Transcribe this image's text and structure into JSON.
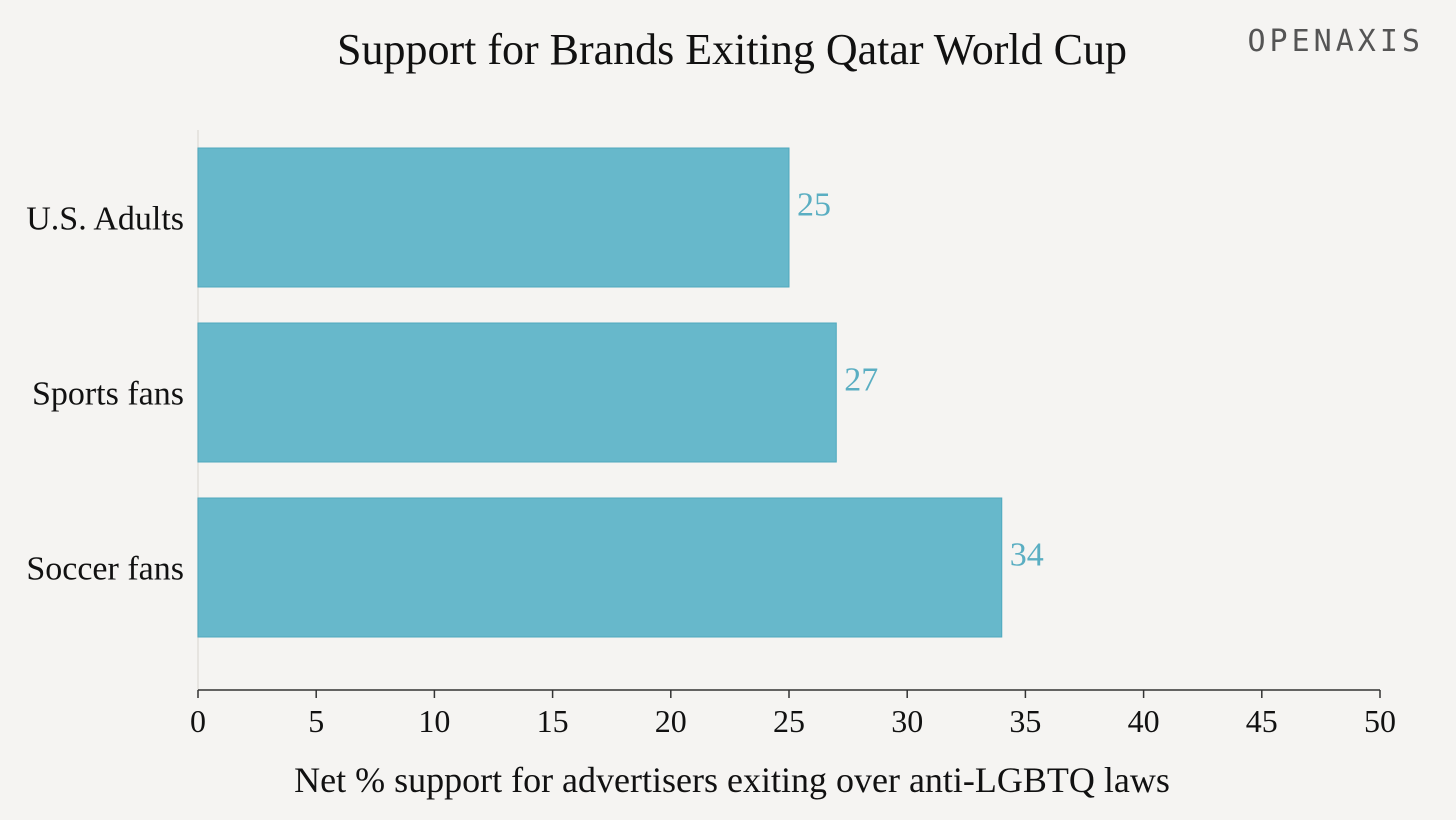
{
  "brand": {
    "logo_text": "OPENAXIS",
    "color": "#555555"
  },
  "colors": {
    "bar": "#67b8cb",
    "bar_stroke": "#4fa9be",
    "value_label": "#5aaec2",
    "axis": "#333333",
    "background": "#f5f4f2"
  },
  "chart_data": {
    "type": "bar",
    "orientation": "horizontal",
    "title": "Support for Brands Exiting Qatar World Cup",
    "xlabel": "Net % support for advertisers exiting over anti-LGBTQ laws",
    "ylabel": "",
    "categories": [
      "U.S. Adults",
      "Sports fans",
      "Soccer fans"
    ],
    "values": [
      25,
      27,
      34
    ],
    "xlim": [
      0,
      50
    ],
    "xticks": [
      0,
      5,
      10,
      15,
      20,
      25,
      30,
      35,
      40,
      45,
      50
    ],
    "grid": false,
    "legend": "none",
    "data_labels": true
  }
}
